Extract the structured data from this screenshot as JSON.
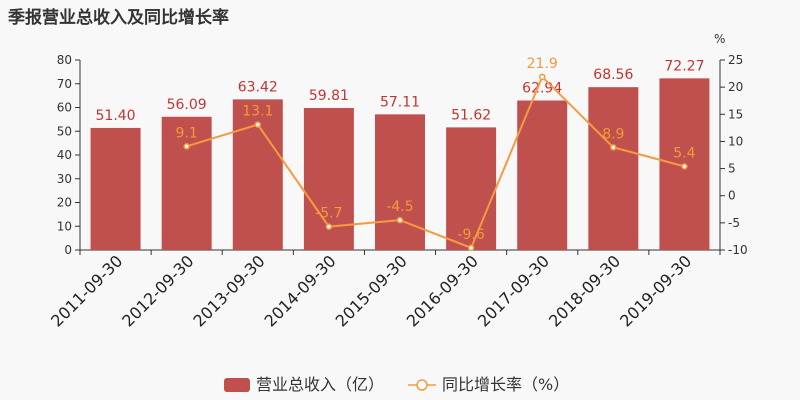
{
  "title": "季报营业总收入及同比增长率",
  "colors": {
    "bar": "#c0504d",
    "line": "#f59a40",
    "label_bar": "#c23531"
  },
  "chart_data": {
    "type": "bar",
    "title": "季报营业总收入及同比增长率",
    "categories": [
      "2011-09-30",
      "2012-09-30",
      "2013-09-30",
      "2014-09-30",
      "2015-09-30",
      "2016-09-30",
      "2017-09-30",
      "2018-09-30",
      "2019-09-30"
    ],
    "series": [
      {
        "name": "营业总收入（亿）",
        "type": "bar",
        "axis": "left",
        "values": [
          51.4,
          56.09,
          63.42,
          59.81,
          57.11,
          51.62,
          62.94,
          68.56,
          72.27
        ],
        "labels": [
          "51.40",
          "56.09",
          "63.42",
          "59.81",
          "57.11",
          "51.62",
          "62.94",
          "68.56",
          "72.27"
        ]
      },
      {
        "name": "同比增长率（%）",
        "type": "line",
        "axis": "right",
        "values": [
          null,
          9.1,
          13.1,
          -5.7,
          -4.5,
          -9.6,
          21.9,
          8.9,
          5.4
        ],
        "labels": [
          "",
          "9.1",
          "13.1",
          "-5.7",
          "-4.5",
          "-9.6",
          "21.9",
          "8.9",
          "5.4"
        ]
      }
    ],
    "y_left": {
      "min": 0,
      "max": 80,
      "ticks": [
        "0",
        "10",
        "20",
        "30",
        "40",
        "50",
        "60",
        "70",
        "80"
      ]
    },
    "y_right": {
      "label": "%",
      "min": -10,
      "max": 25,
      "ticks": [
        "-10",
        "-5",
        "0",
        "5",
        "10",
        "15",
        "20",
        "25"
      ]
    },
    "grid": false,
    "legend": "bottom-center"
  }
}
